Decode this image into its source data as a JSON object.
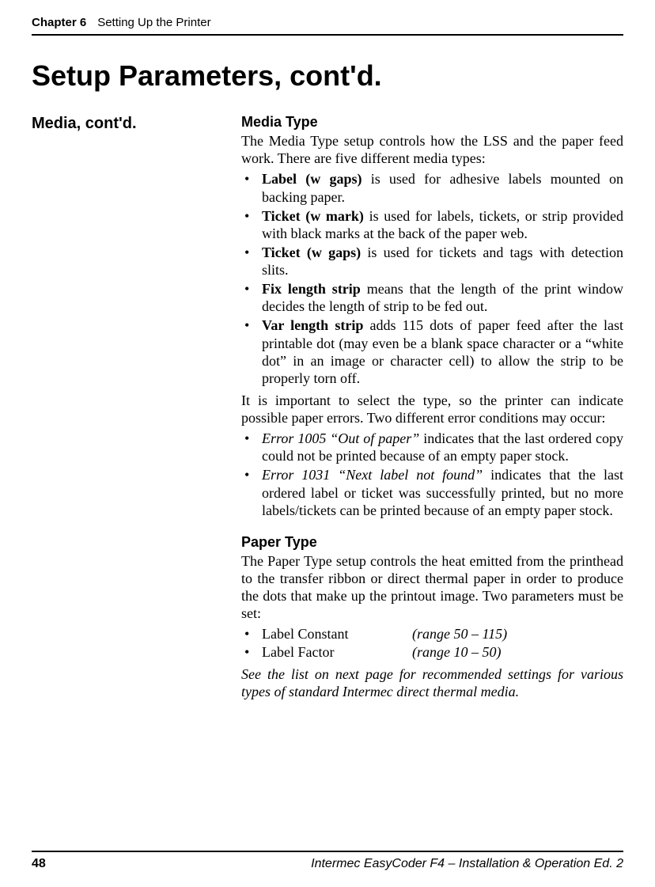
{
  "header": {
    "chapter": "Chapter 6",
    "title": "Setting Up the Printer"
  },
  "main_heading": "Setup Parameters, cont'd.",
  "sidebar_heading": "Media, cont'd.",
  "sections": {
    "media_type": {
      "heading": "Media Type",
      "intro": "The Media Type setup controls how the LSS and the paper feed work. There are five different media types:",
      "items": {
        "label_w_gaps": {
          "term": "Label (w gaps)",
          "desc": " is used for adhesive labels mounted on backing paper."
        },
        "ticket_w_mark": {
          "term": "Ticket (w mark)",
          "desc": " is used for labels, tickets, or strip provided with black marks at the back of the paper web."
        },
        "ticket_w_gaps": {
          "term": "Ticket (w gaps)",
          "desc": " is used for tickets and tags with detection slits."
        },
        "fix_length_strip": {
          "term": "Fix length strip",
          "desc": " means that the length of the print window decides the length of strip to be fed out."
        },
        "var_length_strip": {
          "term": "Var length strip",
          "desc": " adds 115 dots of paper feed after the last printable dot (may even be a blank space character or a “white dot” in an image or character cell) to allow the strip to be properly torn off."
        }
      },
      "errors_intro": "It is important to select the type, so the printer can indicate possible paper errors. Two different error conditions may occur:",
      "errors": {
        "e1005": {
          "term": "Error 1005 “Out of paper”",
          "desc": " indicates that the last ordered copy could not be printed because of an empty paper stock."
        },
        "e1031": {
          "term": "Error 1031 “Next label not found”",
          "desc": " indicates that the last ordered label or ticket was successfully printed, but no more labels/tickets can be printed because of an empty paper stock."
        }
      }
    },
    "paper_type": {
      "heading": "Paper Type",
      "intro": "The Paper Type setup controls the heat emitted from the printhead to the transfer ribbon or direct thermal paper in order to produce the dots that make up the printout image. Two parameters must be set:",
      "params": {
        "label_constant": {
          "label": "Label Constant",
          "range": "(range 50 – 115)"
        },
        "label_factor": {
          "label": "Label Factor",
          "range": "(range 10 – 50)"
        }
      },
      "note": "See the list on next page for recommended settings for various types of standard Intermec direct thermal media."
    }
  },
  "footer": {
    "page_number": "48",
    "doc_title": "Intermec EasyCoder F4 – Installation & Operation Ed. 2"
  }
}
